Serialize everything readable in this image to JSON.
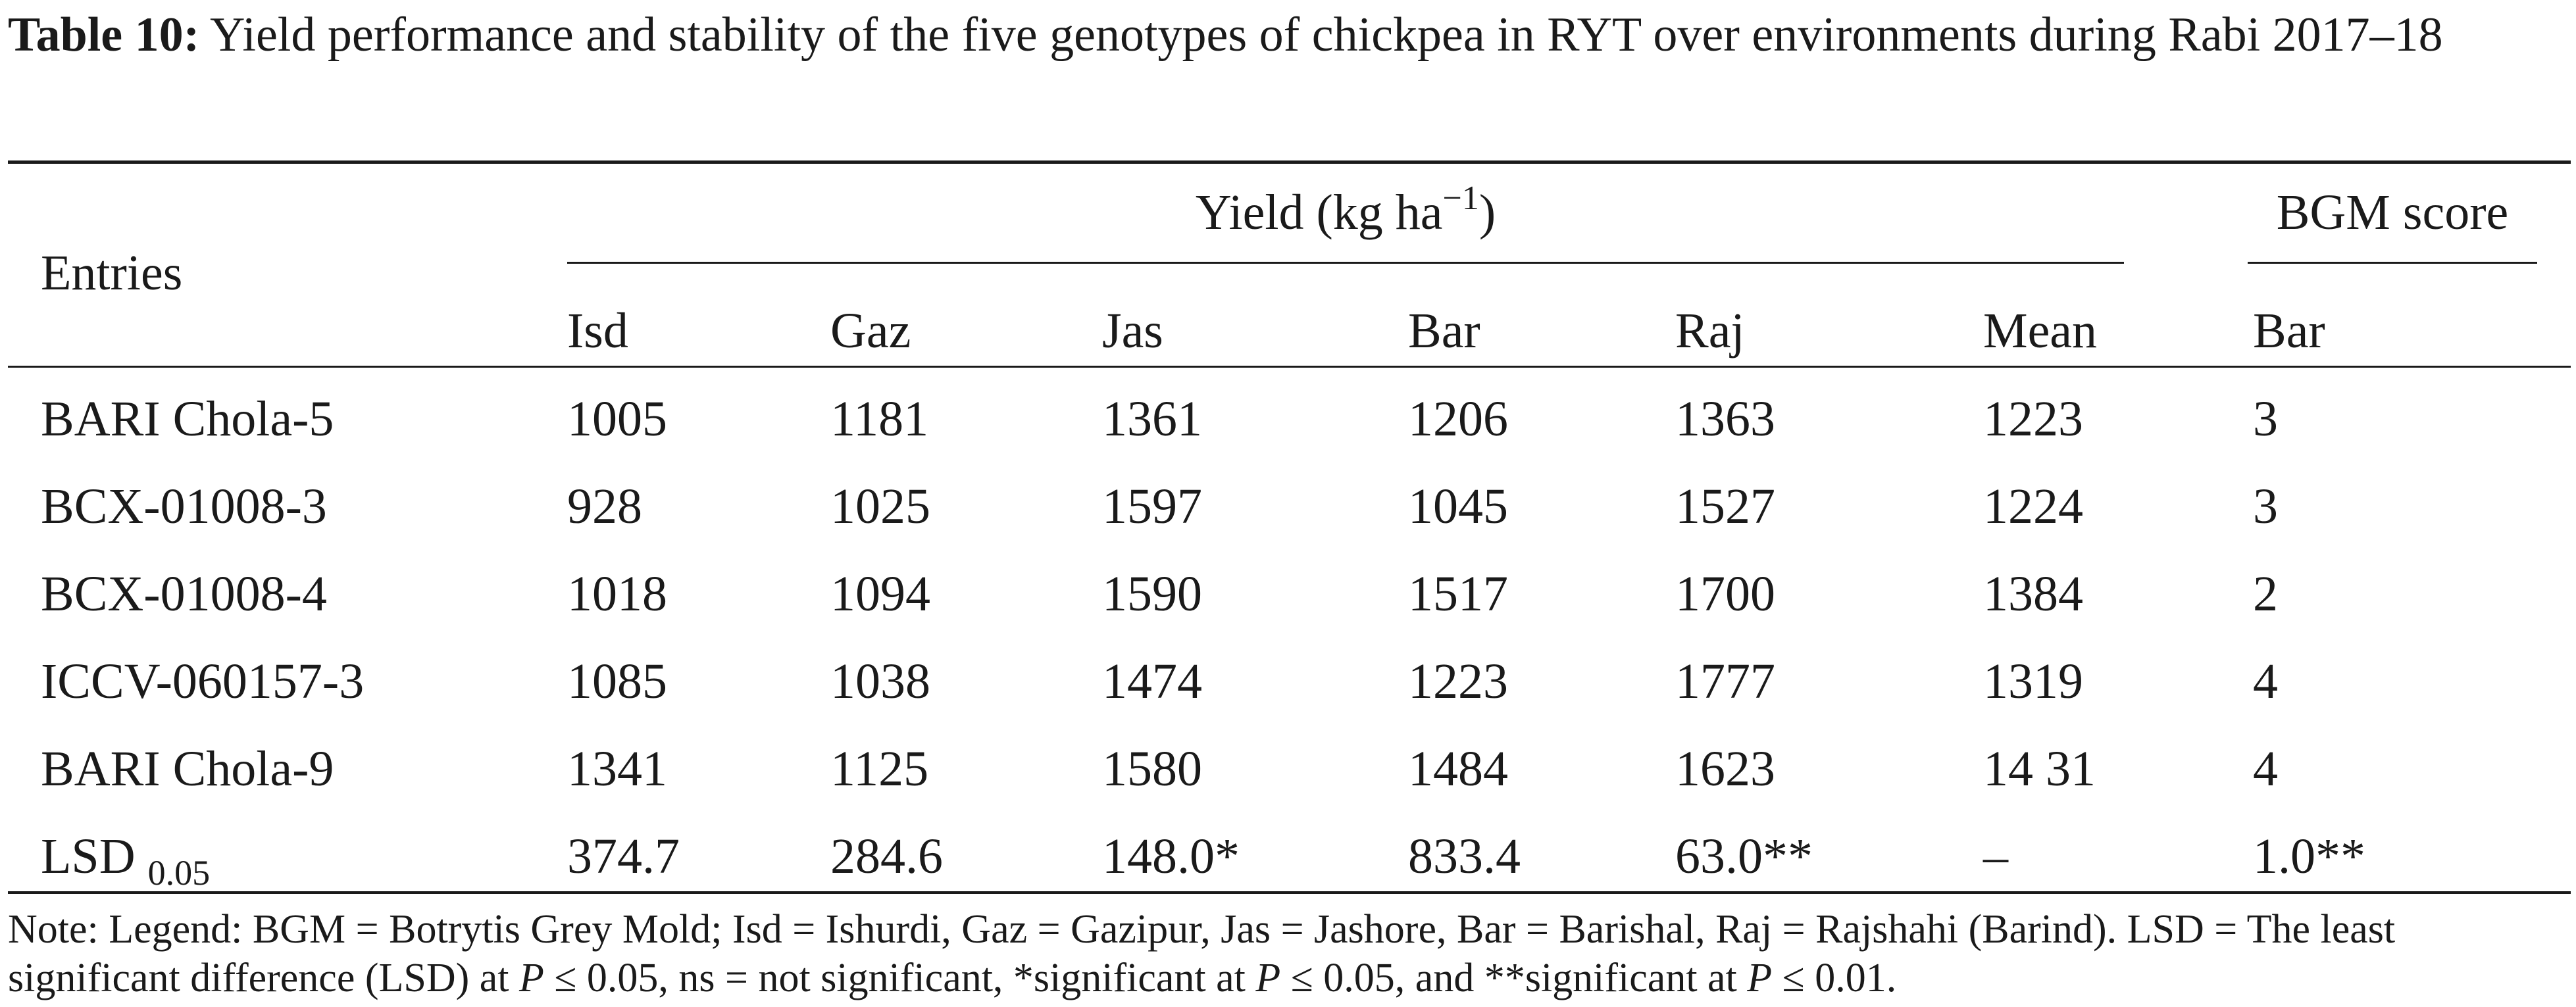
{
  "caption": {
    "label": "Table 10:",
    "text": "Yield performance and stability of the five genotypes of chickpea in RYT over environments during Rabi 2017–18"
  },
  "header": {
    "entries": "Entries",
    "yield_group": "Yield (kg ha",
    "yield_sup": "−1",
    "yield_close": ")",
    "bgm_group": "BGM score",
    "sub": {
      "isd": "Isd",
      "gaz": "Gaz",
      "jas": "Jas",
      "bar": "Bar",
      "raj": "Raj",
      "mean": "Mean",
      "bgm_bar": "Bar"
    }
  },
  "rows": [
    {
      "entry": "BARI Chola-5",
      "isd": "1005",
      "gaz": "1181",
      "jas": "1361",
      "bar": "1206",
      "raj": "1363",
      "mean": "1223",
      "bgm": "3"
    },
    {
      "entry": "BCX-01008-3",
      "isd": "928",
      "gaz": "1025",
      "jas": "1597",
      "bar": "1045",
      "raj": "1527",
      "mean": "1224",
      "bgm": "3"
    },
    {
      "entry": "BCX-01008-4",
      "isd": "1018",
      "gaz": "1094",
      "jas": "1590",
      "bar": "1517",
      "raj": "1700",
      "mean": "1384",
      "bgm": "2"
    },
    {
      "entry": "ICCV-060157-3",
      "isd": "1085",
      "gaz": "1038",
      "jas": "1474",
      "bar": "1223",
      "raj": "1777",
      "mean": "1319",
      "bgm": "4"
    },
    {
      "entry": "BARI Chola-9",
      "isd": "1341",
      "gaz": "1125",
      "jas": "1580",
      "bar": "1484",
      "raj": "1623",
      "mean": "14 31",
      "bgm": "4"
    }
  ],
  "lsd": {
    "label": "LSD",
    "sub": "0.05",
    "isd": "374.7",
    "gaz": "284.6",
    "jas": "148.0*",
    "bar": "833.4",
    "raj": "63.0**",
    "mean": "–",
    "bgm": "1.0**"
  },
  "note": {
    "part1": "Note: Legend: BGM = Botrytis Grey Mold; Isd = Ishurdi, Gaz = Gazipur, Jas = Jashore, Bar = Barishal, Raj = Rajshahi (Barind). LSD = The least significant difference (LSD) at ",
    "p1": "P",
    "part2": " ≤ 0.05, ns = not significant, *significant at ",
    "p2": "P",
    "part3": " ≤ 0.05, and **significant at ",
    "p3": "P",
    "part4": " ≤ 0.01."
  }
}
